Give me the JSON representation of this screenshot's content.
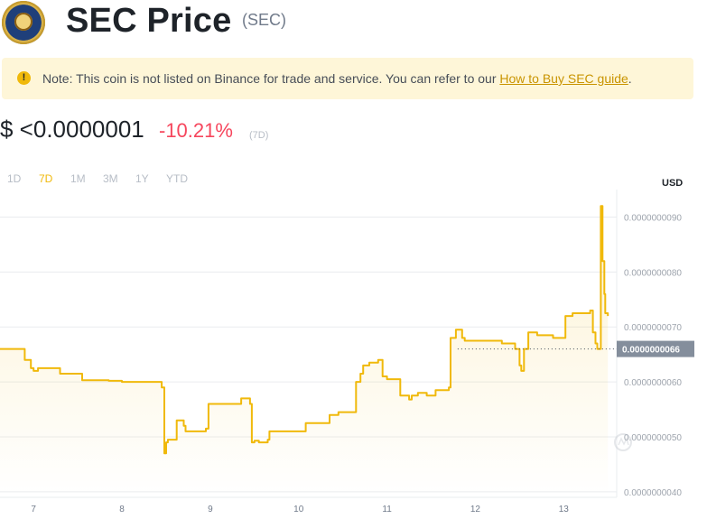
{
  "header": {
    "title": "SEC Price",
    "symbol": "(SEC)"
  },
  "notice": {
    "text": "Note: This coin is not listed on Binance for trade and service. You can refer to our ",
    "link_text": "How to Buy SEC guide",
    "suffix": "."
  },
  "price": {
    "value": "$ <0.0000001",
    "change": "-10.21%",
    "period": "(7D)"
  },
  "range_tabs": [
    {
      "label": "1D",
      "active": false
    },
    {
      "label": "7D",
      "active": true
    },
    {
      "label": "1M",
      "active": false
    },
    {
      "label": "3M",
      "active": false
    },
    {
      "label": "1Y",
      "active": false
    },
    {
      "label": "YTD",
      "active": false
    }
  ],
  "currency": "USD",
  "colors": {
    "accent": "#f0b90b",
    "negative": "#f6465d",
    "notice_bg": "#fef6d8"
  },
  "chart_data": {
    "type": "line",
    "xlabel": "",
    "ylabel": "",
    "x_ticks": [
      "7",
      "8",
      "9",
      "10",
      "11",
      "12",
      "13"
    ],
    "y_ticks": [
      "0.0000000090",
      "0.0000000080",
      "0.0000000070",
      "0.0000000060",
      "0.0000000050",
      "0.0000000040"
    ],
    "current_label": "0.0000000066",
    "current_value": 6.6e-09,
    "xlim": [
      6.62,
      13.6
    ],
    "ylim": [
      3.9e-09,
      9.5e-09
    ],
    "grid": true,
    "series": [
      {
        "color": "#f0b90b",
        "x": [
          6.62,
          6.88,
          6.9,
          6.97,
          7.0,
          7.05,
          7.3,
          7.33,
          7.45,
          7.55,
          7.7,
          7.72,
          7.85,
          8.0,
          8.2,
          8.3,
          8.45,
          8.48,
          8.5,
          8.52,
          8.6,
          8.62,
          8.7,
          8.72,
          8.8,
          8.95,
          8.98,
          9.05,
          9.25,
          9.35,
          9.45,
          9.47,
          9.5,
          9.55,
          9.65,
          9.67,
          9.75,
          9.95,
          10.05,
          10.08,
          10.3,
          10.35,
          10.45,
          10.5,
          10.6,
          10.65,
          10.7,
          10.73,
          10.8,
          10.9,
          10.95,
          11.0,
          11.1,
          11.15,
          11.25,
          11.28,
          11.35,
          11.45,
          11.55,
          11.6,
          11.7,
          11.72,
          11.78,
          11.8,
          11.85,
          11.88,
          11.95,
          12.2,
          12.3,
          12.4,
          12.45,
          12.5,
          12.52,
          12.55,
          12.6,
          12.7,
          12.8,
          12.88,
          13.02,
          13.1,
          13.2,
          13.3,
          13.33,
          13.36,
          13.38,
          13.42,
          13.44,
          13.46,
          13.47,
          13.5
        ],
        "y": [
          6.6e-09,
          6.6e-09,
          6.4e-09,
          6.25e-09,
          6.2e-09,
          6.25e-09,
          6.15e-09,
          6.15e-09,
          6.15e-09,
          6.03e-09,
          6.03e-09,
          6.03e-09,
          6.02e-09,
          6e-09,
          6e-09,
          6e-09,
          5.9e-09,
          4.7e-09,
          4.9e-09,
          4.95e-09,
          4.95e-09,
          5.3e-09,
          5.2e-09,
          5.1e-09,
          5.1e-09,
          5.15e-09,
          5.6e-09,
          5.6e-09,
          5.6e-09,
          5.7e-09,
          5.6e-09,
          4.9e-09,
          4.93e-09,
          4.9e-09,
          4.95e-09,
          5.1e-09,
          5.1e-09,
          5.1e-09,
          5.1e-09,
          5.25e-09,
          5.25e-09,
          5.4e-09,
          5.45e-09,
          5.45e-09,
          5.45e-09,
          6e-09,
          6.15e-09,
          6.3e-09,
          6.35e-09,
          6.4e-09,
          6.1e-09,
          6.05e-09,
          6.05e-09,
          5.75e-09,
          5.68e-09,
          5.75e-09,
          5.8e-09,
          5.75e-09,
          5.85e-09,
          5.85e-09,
          5.9e-09,
          6.8e-09,
          6.95e-09,
          6.95e-09,
          6.8e-09,
          6.75e-09,
          6.75e-09,
          6.75e-09,
          6.7e-09,
          6.7e-09,
          6.6e-09,
          6.3e-09,
          6.2e-09,
          6.6e-09,
          6.9e-09,
          6.85e-09,
          6.85e-09,
          6.8e-09,
          7.2e-09,
          7.25e-09,
          7.25e-09,
          7.3e-09,
          6.9e-09,
          6.7e-09,
          6.6e-09,
          9.2e-09,
          8.2e-09,
          7.6e-09,
          7.25e-09,
          7.2e-09
        ]
      }
    ]
  }
}
